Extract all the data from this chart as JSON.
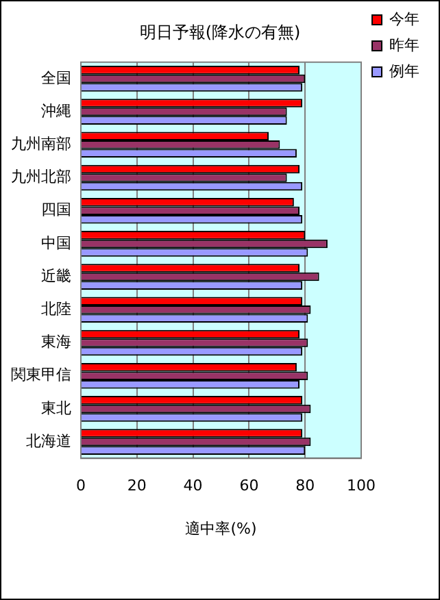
{
  "chart_data": {
    "type": "bar",
    "orientation": "horizontal",
    "title": "明日予報(降水の有無)",
    "xlabel": "適中率(%)",
    "categories": [
      "全国",
      "沖縄",
      "九州南部",
      "九州北部",
      "四国",
      "中国",
      "近畿",
      "北陸",
      "東海",
      "関東甲信",
      "東北",
      "北海道"
    ],
    "series": [
      {
        "name": "今年",
        "color": "#ff0000",
        "values": [
          78,
          79,
          67,
          78,
          76,
          80,
          78,
          79,
          78,
          77,
          79,
          79
        ]
      },
      {
        "name": "昨年",
        "color": "#993366",
        "values": [
          80,
          73.5,
          71,
          73.5,
          78,
          88,
          85,
          82,
          81,
          81,
          82,
          82
        ]
      },
      {
        "name": "例年",
        "color": "#9999ff",
        "values": [
          79,
          73.5,
          77,
          79,
          79,
          81,
          79,
          81,
          79,
          78,
          79,
          80
        ]
      }
    ],
    "xlim": [
      0,
      100
    ],
    "xticks": [
      0,
      20,
      40,
      60,
      80,
      100
    ],
    "grid": "x",
    "legend": "top right"
  }
}
